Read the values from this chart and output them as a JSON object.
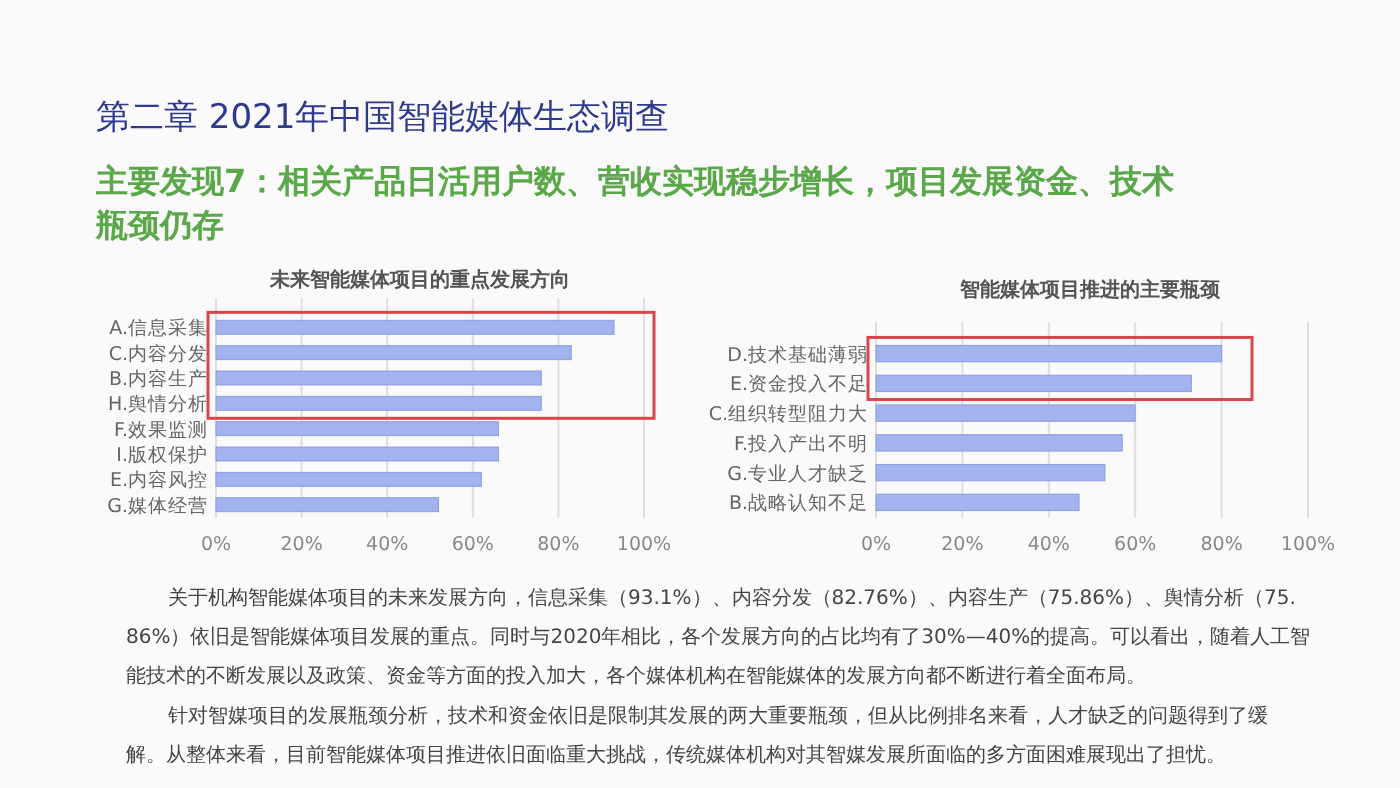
{
  "chart_data": [
    {
      "type": "other",
      "title": "第二章  2021年中国智能媒体生态调查",
      "subtitle": "主要发现7：相关产品日活用户数、营收实现稳步增长，项目发展资金、技术瓶颈仍存",
      "annotations": [
        "关于机构智能媒体项目的未来发展方向，信息采集（93.1%）、内容分发（82.76%）、内容生产（75.86%）、舆情分析（75.86%）依旧是智能媒体项目发展的重点。同时与2020年相比，各个发展方向的占比均有了30%—40%的提高。可以看出，随着人工智能技术的不断发展以及政策、资金等方面的投入加大，各个媒体机构在智能媒体的发展方向都不断进行着全面布局。",
        "针对智媒项目的发展瓶颈分析，技术和资金依旧是限制其发展的两大重要瓶颈，但从比例排名来看，人才缺乏的问题得到了缓解。从整体来看，目前智能媒体项目推进依旧面临重大挑战，传统媒体机构对其智媒发展所面临的多方面困难展现出了担忧。"
      ]
    },
    {
      "type": "bar",
      "orientation": "horizontal",
      "title": "未来智能媒体项目的重点发展方向",
      "categories": [
        "A.信息采集",
        "C.内容分发",
        "B.内容生产",
        "H.舆情分析",
        "F.效果监测",
        "I.版权保护",
        "E.内容风控",
        "G.媒体经营"
      ],
      "values": [
        93,
        83,
        76,
        76,
        66,
        66,
        62,
        52
      ],
      "color": "#a3b3ee",
      "xlim": [
        0,
        100
      ],
      "xticks": [
        {
          "value": 0,
          "label": "0%"
        },
        {
          "value": 20,
          "label": "20%"
        },
        {
          "value": 40,
          "label": "40%"
        },
        {
          "value": 60,
          "label": "60%"
        },
        {
          "value": 80,
          "label": "80%"
        },
        {
          "value": 100,
          "label": "100%"
        }
      ],
      "grid": "x"
    },
    {
      "type": "bar",
      "orientation": "horizontal",
      "title": "智能媒体项目推进的主要瓶颈",
      "categories": [
        "D.技术基础薄弱",
        "E.资金投入不足",
        "C.组织转型阻力大",
        "F.投入产出不明",
        "G.专业人才缺乏",
        "B.战略认知不足"
      ],
      "values": [
        80,
        73,
        60,
        57,
        53,
        47
      ],
      "color": "#a3b3ee",
      "xlim": [
        0,
        100
      ],
      "xticks": [
        {
          "value": 0,
          "label": "0%"
        },
        {
          "value": 20,
          "label": "20%"
        },
        {
          "value": 40,
          "label": "40%"
        },
        {
          "value": 60,
          "label": "60%"
        },
        {
          "value": 80,
          "label": "80%"
        },
        {
          "value": 100,
          "label": "100%"
        }
      ],
      "grid": "x"
    }
  ]
}
